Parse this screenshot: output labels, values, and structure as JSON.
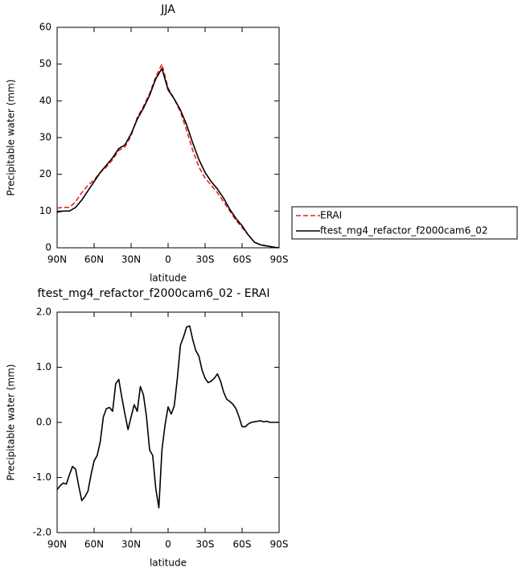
{
  "chart_data": [
    {
      "type": "line",
      "title": "JJA",
      "xlabel": "latitude",
      "ylabel": "Precipitable water (mm)",
      "x": [
        90,
        85,
        80,
        75,
        70,
        65,
        60,
        55,
        50,
        45,
        40,
        35,
        30,
        25,
        20,
        15,
        10,
        5,
        0,
        -5,
        -10,
        -15,
        -20,
        -25,
        -30,
        -35,
        -40,
        -45,
        -50,
        -55,
        -60,
        -65,
        -70,
        -75,
        -80,
        -85,
        -90
      ],
      "series": [
        {
          "name": "ERAI",
          "color": "#e8221c",
          "dashed": true,
          "values": [
            10.8,
            11,
            11,
            12.5,
            15,
            17,
            18.5,
            20.5,
            22,
            24,
            26.5,
            27.5,
            30.5,
            35.5,
            38.5,
            42,
            46.5,
            50,
            43.5,
            40.5,
            37,
            32,
            26.5,
            22,
            19,
            17,
            15,
            12.5,
            10,
            7.5,
            5.5,
            3.5,
            1.5,
            0.8,
            0.5,
            0.2,
            0
          ]
        },
        {
          "name": "ftest_mg4_refactor_f2000cam6_02",
          "color": "#000000",
          "dashed": false,
          "values": [
            9.7,
            10,
            10,
            11,
            13,
            15.5,
            18,
            20.5,
            22.5,
            24.5,
            27,
            28,
            31,
            35,
            38,
            41.5,
            46,
            48.8,
            43,
            40.5,
            37.5,
            33.5,
            28.5,
            24,
            20.5,
            18,
            16,
            13.5,
            10.5,
            8,
            6,
            3.5,
            1.5,
            0.8,
            0.5,
            0.2,
            0
          ]
        }
      ],
      "xlim": [
        90,
        -90
      ],
      "xticks": [
        {
          "value": 90,
          "label": "90N"
        },
        {
          "value": 60,
          "label": "60N"
        },
        {
          "value": 30,
          "label": "30N"
        },
        0,
        {
          "value": -30,
          "label": "30S"
        },
        {
          "value": -60,
          "label": "60S"
        },
        {
          "value": -90,
          "label": "90S"
        }
      ],
      "ylim": [
        0,
        60
      ],
      "yticks": [
        0,
        10,
        20,
        30,
        40,
        50,
        60
      ],
      "legend": "right"
    },
    {
      "type": "line",
      "title": "ftest_mg4_refactor_f2000cam6_02 - ERAI",
      "xlabel": "latitude",
      "ylabel": "Precipitable water (mm)",
      "x": [
        90,
        87.5,
        85,
        82.5,
        80,
        77.5,
        75,
        72.5,
        70,
        67.5,
        65,
        62.5,
        60,
        57.5,
        55,
        52.5,
        50,
        47.5,
        45,
        42.5,
        40,
        37.5,
        35,
        32.5,
        30,
        27.5,
        25,
        22.5,
        20,
        17.5,
        15,
        12.5,
        10,
        7.5,
        5,
        2.5,
        0,
        -2.5,
        -5,
        -7.5,
        -10,
        -12.5,
        -15,
        -17.5,
        -20,
        -22.5,
        -25,
        -27.5,
        -30,
        -32.5,
        -35,
        -37.5,
        -40,
        -42.5,
        -45,
        -47.5,
        -50,
        -52.5,
        -55,
        -57.5,
        -60,
        -62.5,
        -65,
        -67.5,
        -70,
        -72.5,
        -75,
        -77.5,
        -80,
        -82.5,
        -85,
        -87.5,
        -90
      ],
      "series": [
        {
          "color": "#000000",
          "dashed": false,
          "values": [
            -1.22,
            -1.15,
            -1.1,
            -1.12,
            -0.95,
            -0.8,
            -0.85,
            -1.15,
            -1.42,
            -1.35,
            -1.25,
            -0.95,
            -0.7,
            -0.6,
            -0.35,
            0.1,
            0.25,
            0.27,
            0.2,
            0.7,
            0.78,
            0.45,
            0.15,
            -0.13,
            0.1,
            0.32,
            0.2,
            0.65,
            0.5,
            0.1,
            -0.5,
            -0.6,
            -1.2,
            -1.55,
            -0.5,
            -0.05,
            0.28,
            0.15,
            0.3,
            0.8,
            1.4,
            1.55,
            1.73,
            1.75,
            1.5,
            1.3,
            1.2,
            0.95,
            0.8,
            0.72,
            0.75,
            0.8,
            0.88,
            0.75,
            0.55,
            0.42,
            0.38,
            0.33,
            0.25,
            0.1,
            -0.08,
            -0.08,
            -0.03,
            0,
            0.01,
            0.02,
            0.03,
            0.01,
            0.02,
            0,
            0,
            0,
            0
          ]
        }
      ],
      "xlim": [
        90,
        -90
      ],
      "xticks": [
        {
          "value": 90,
          "label": "90N"
        },
        {
          "value": 60,
          "label": "60N"
        },
        {
          "value": 30,
          "label": "30N"
        },
        0,
        {
          "value": -30,
          "label": "30S"
        },
        {
          "value": -60,
          "label": "60S"
        },
        {
          "value": -90,
          "label": "90S"
        }
      ],
      "ylim": [
        -2,
        2
      ],
      "yticks": [
        {
          "value": -2,
          "label": "-2.0"
        },
        {
          "value": -1,
          "label": "-1.0"
        },
        {
          "value": 0,
          "label": "0.0"
        },
        {
          "value": 1,
          "label": "1.0"
        },
        {
          "value": 2,
          "label": "2.0"
        }
      ]
    }
  ]
}
